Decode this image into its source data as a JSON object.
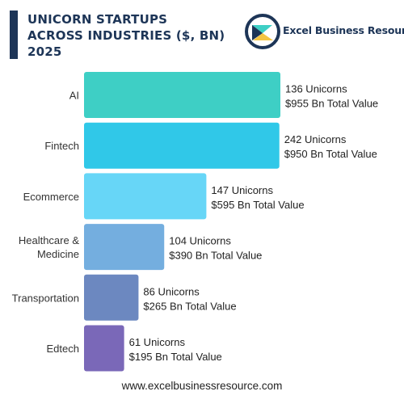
{
  "header": {
    "title_lines": [
      "UNICORN STARTUPS",
      "ACROSS INDUSTRIES ($, BN)",
      "2025"
    ],
    "brand": "Excel Business Resource"
  },
  "footer": {
    "url": "www.excelbusinessresource.com"
  },
  "chart_data": {
    "type": "bar",
    "orientation": "horizontal",
    "title": "UNICORN STARTUPS ACROSS INDUSTRIES ($, BN) 2025",
    "categories": [
      {
        "label_lines": [
          "AI"
        ],
        "unicorns": 136,
        "value": 955,
        "label_lines_right": [
          "136 Unicorns",
          "$955 Bn Total Value"
        ],
        "color": "#3ecfc5"
      },
      {
        "label_lines": [
          "Fintech"
        ],
        "unicorns": 242,
        "value": 950,
        "label_lines_right": [
          "242 Unicorns",
          "$950 Bn Total Value"
        ],
        "color": "#30c8e8"
      },
      {
        "label_lines": [
          "Ecommerce"
        ],
        "unicorns": 147,
        "value": 595,
        "label_lines_right": [
          "147 Unicorns",
          "$595 Bn Total Value"
        ],
        "color": "#67d6f7"
      },
      {
        "label_lines": [
          "Healthcare &",
          "Medicine"
        ],
        "unicorns": 104,
        "value": 390,
        "label_lines_right": [
          "104 Unicorns",
          "$390 Bn Total Value"
        ],
        "color": "#74aedf"
      },
      {
        "label_lines": [
          "Transportation"
        ],
        "unicorns": 86,
        "value": 265,
        "label_lines_right": [
          "86 Unicorns",
          "$265 Bn Total Value"
        ],
        "color": "#6c88c0"
      },
      {
        "label_lines": [
          "Edtech"
        ],
        "unicorns": 61,
        "value": 195,
        "label_lines_right": [
          "61 Unicorns",
          "$195 Bn Total Value"
        ],
        "color": "#7a68b8"
      }
    ],
    "series": [
      {
        "values": [
          955,
          950,
          595,
          390,
          265,
          195
        ]
      }
    ],
    "grid": false,
    "legend": "none"
  }
}
